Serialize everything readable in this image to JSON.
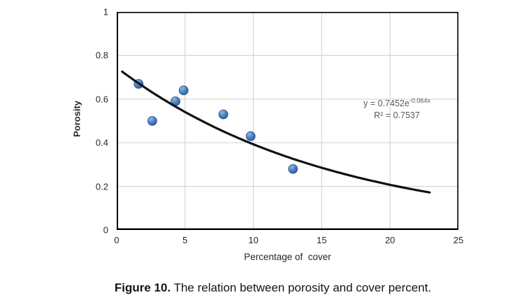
{
  "figure": {
    "caption_label": "Figure 10.",
    "caption_text": " The relation between porosity and cover percent."
  },
  "chart_data": {
    "type": "scatter",
    "title": "",
    "xlabel": "Percentage of  cover",
    "ylabel": "Porosity",
    "xlim": [
      0,
      25
    ],
    "ylim": [
      0,
      1
    ],
    "x_ticks": [
      "0",
      "5",
      "10",
      "15",
      "20",
      "25"
    ],
    "y_ticks": [
      "1",
      "0.8",
      "0.6",
      "0.4",
      "0.2",
      "0"
    ],
    "x_gridlines": [
      5,
      10,
      15,
      20
    ],
    "y_gridlines": [
      0.2,
      0.4,
      0.6,
      0.8
    ],
    "grid": true,
    "legend_position": "none",
    "points": [
      {
        "x": 1.6,
        "y": 0.67
      },
      {
        "x": 2.6,
        "y": 0.5
      },
      {
        "x": 4.3,
        "y": 0.59
      },
      {
        "x": 4.9,
        "y": 0.64
      },
      {
        "x": 7.8,
        "y": 0.53
      },
      {
        "x": 9.8,
        "y": 0.43
      },
      {
        "x": 12.9,
        "y": 0.28
      }
    ],
    "trendline": {
      "type": "exponential",
      "a": 0.7452,
      "b": -0.064,
      "x_start": 0.4,
      "x_end": 23,
      "equation_prefix": "y = 0.7452e",
      "equation_exponent": "-0.064x",
      "r_squared_label": "R² = 0.7537"
    },
    "colors": {
      "grid": "#d6d6d6",
      "axis": "#000000",
      "trendline": "#111111",
      "marker": "#4a7ebf",
      "marker_highlight": "#8fb8e8",
      "marker_edge": "#2a578f",
      "equation_text": "#595959"
    }
  }
}
